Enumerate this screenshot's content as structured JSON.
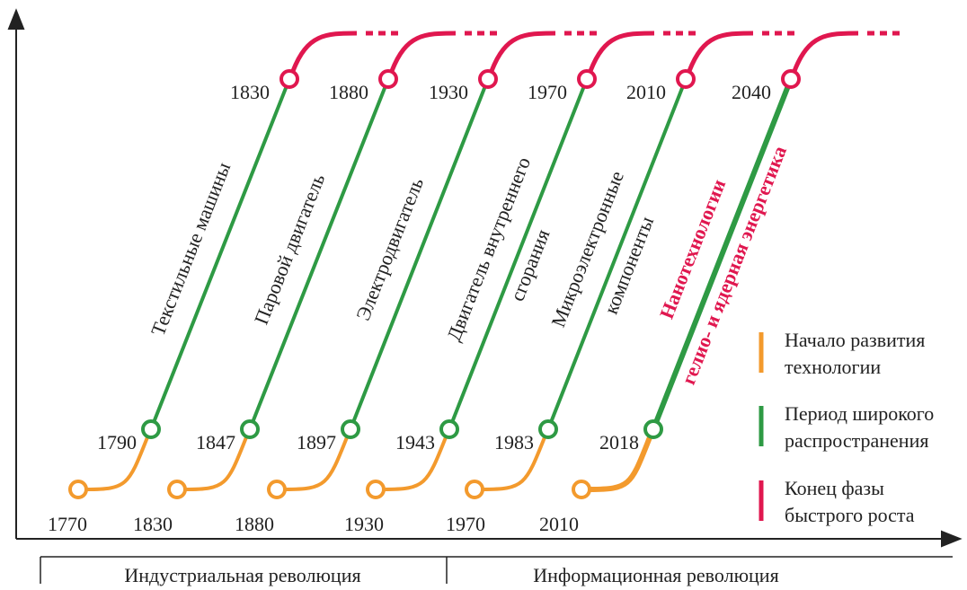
{
  "waves": [
    {
      "start": "1770",
      "spread": "1790",
      "end": "1830",
      "label": [
        "Текстильные машины"
      ]
    },
    {
      "start": "1830",
      "spread": "1847",
      "end": "1880",
      "label": [
        "Паровой двигатель"
      ]
    },
    {
      "start": "1880",
      "spread": "1897",
      "end": "1930",
      "label": [
        "Электродвигатель"
      ]
    },
    {
      "start": "1930",
      "spread": "1943",
      "end": "1970",
      "label": [
        "Двигатель внутреннего",
        "сгорания"
      ]
    },
    {
      "start": "1970",
      "spread": "1983",
      "end": "2010",
      "label": [
        "Микроэлектронные",
        "компоненты"
      ]
    },
    {
      "start": "2010",
      "spread": "2018",
      "end": "2040",
      "label": [
        "Нанотехнологии",
        "гелио- и ядерная энергетика"
      ]
    }
  ],
  "legend": [
    {
      "color": "#f39a2d",
      "lines": [
        "Начало развития",
        "технологии"
      ]
    },
    {
      "color": "#2e9a44",
      "lines": [
        "Период широкого",
        "распространения"
      ]
    },
    {
      "color": "#e0174f",
      "lines": [
        "Конец фазы",
        "быстрого роста"
      ]
    }
  ],
  "eras": [
    "Индустриальная революция",
    "Информационная революция"
  ]
}
